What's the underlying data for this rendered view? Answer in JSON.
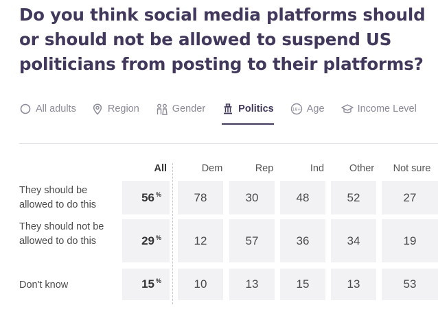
{
  "question": "Do you think social media platforms should or should not be allowed to suspend US politicians from posting to their platforms?",
  "tabs": [
    {
      "label": "All adults",
      "icon": "circle-icon"
    },
    {
      "label": "Region",
      "icon": "map-pin-icon"
    },
    {
      "label": "Gender",
      "icon": "people-icon"
    },
    {
      "label": "Politics",
      "icon": "capitol-icon",
      "active": true
    },
    {
      "label": "Age",
      "icon": "age-badge-icon"
    },
    {
      "label": "Income Level",
      "icon": "graduation-cap-icon"
    }
  ],
  "table": {
    "columns": [
      "All",
      "Dem",
      "Rep",
      "Ind",
      "Other",
      "Not sure"
    ],
    "percent_symbol": "%",
    "rows": [
      {
        "label": "They should be allowed to do this",
        "all": "56",
        "values": [
          "78",
          "30",
          "48",
          "52",
          "27"
        ]
      },
      {
        "label": "They should not be allowed to do this",
        "all": "29",
        "values": [
          "12",
          "57",
          "36",
          "34",
          "19"
        ]
      },
      {
        "label": "Don't know",
        "all": "15",
        "values": [
          "10",
          "13",
          "15",
          "13",
          "53"
        ]
      }
    ]
  },
  "colors": {
    "accent": "#42385c",
    "muted": "#8a8a99",
    "cell_bg": "#f2f2f5"
  }
}
